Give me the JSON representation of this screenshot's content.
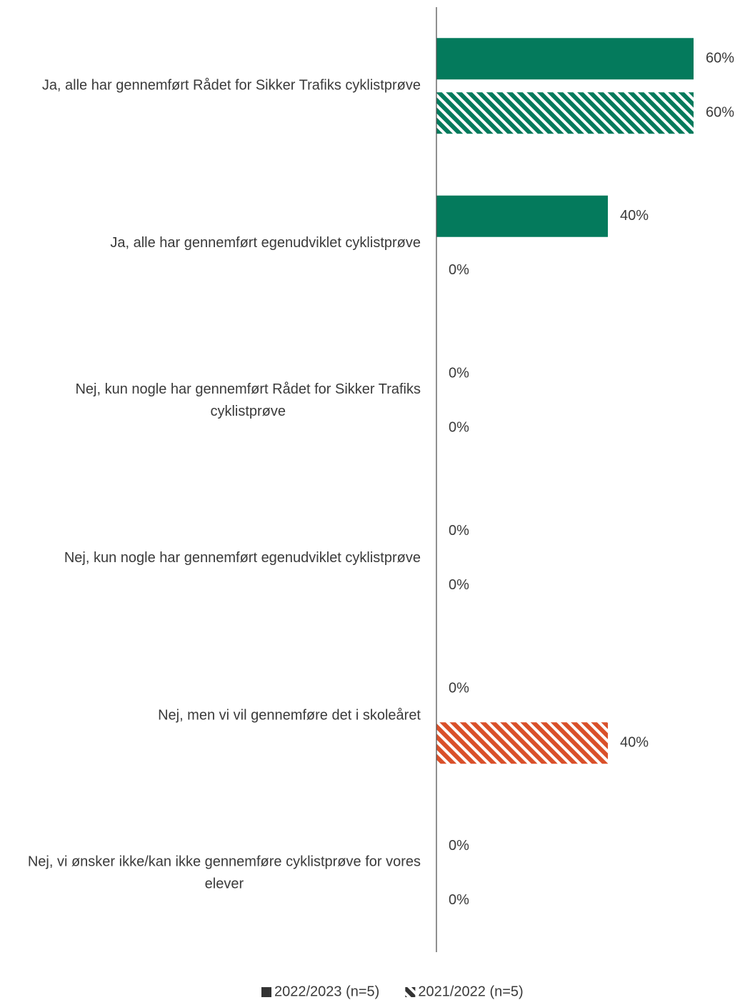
{
  "chart_data": {
    "type": "hbar",
    "categories": [
      "Ja, alle har gennemført Rådet for Sikker Trafiks cyklistprøve",
      "Ja, alle har gennemført egenudviklet cyklistprøve",
      "Nej, kun nogle har gennemført Rådet for Sikker Trafiks cyklistprøve",
      "Nej, kun nogle har gennemført egenudviklet cyklistprøve",
      "Nej, men vi vil gennemføre det i skoleåret",
      "Nej, vi ønsker ikke/kan ikke gennemføre cyklistprøve for vores elever"
    ],
    "series": [
      {
        "name": "2022/2023 (n=5)",
        "pattern": "solid",
        "color": "#047a5c",
        "legend_color": "#333333",
        "values": [
          60,
          40,
          0,
          0,
          0,
          0
        ],
        "value_labels": [
          "60%",
          "40%",
          "0%",
          "0%",
          "0%",
          "0%"
        ]
      },
      {
        "name": "2021/2022 (n=5)",
        "pattern": "hatch",
        "colors": [
          "#047a5c",
          "#047a5c",
          "#047a5c",
          "#047a5c",
          "#d9502a",
          "#047a5c"
        ],
        "legend_color": "#333333",
        "values": [
          60,
          0,
          0,
          0,
          40,
          0
        ],
        "value_labels": [
          "60%",
          "0%",
          "0%",
          "0%",
          "40%",
          "0%"
        ]
      }
    ],
    "xlim": [
      0,
      60
    ],
    "legend": "bottom"
  }
}
